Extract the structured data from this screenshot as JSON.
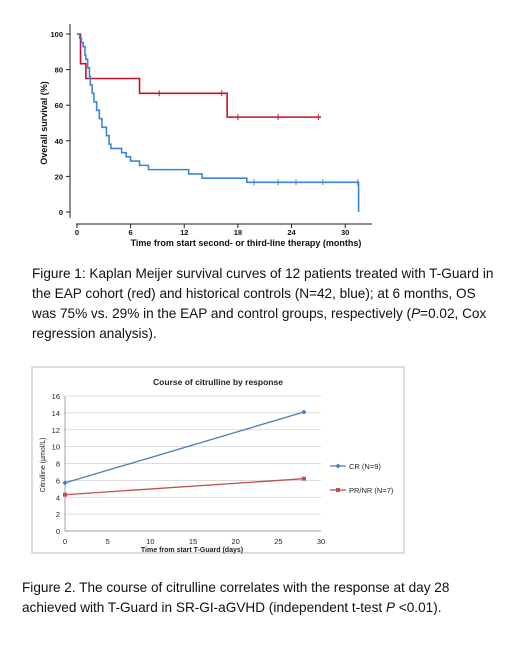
{
  "chart_data": [
    {
      "type": "line",
      "step": true,
      "title": "",
      "ylabel": "Overall survival (%)",
      "xlabel": "Time from start second- or third-line therapy (months)",
      "xlim": [
        -1,
        33
      ],
      "ylim": [
        0,
        100
      ],
      "xticks": [
        0,
        6,
        12,
        18,
        24,
        30
      ],
      "yticks": [
        0,
        20,
        40,
        60,
        80,
        100
      ],
      "grid": false,
      "series": [
        {
          "name": "EAP cohort",
          "color": "#c8102e",
          "steps": [
            [
              0,
              100
            ],
            [
              0.4,
              83.3
            ],
            [
              1.0,
              75
            ],
            [
              7.0,
              66.7
            ],
            [
              16.8,
              53.3
            ],
            [
              27.3,
              53.3
            ]
          ],
          "censored": [
            [
              9.2,
              66.7
            ],
            [
              16.2,
              66.7
            ],
            [
              18.0,
              53.3
            ],
            [
              22.5,
              53.3
            ],
            [
              27.0,
              53.3
            ]
          ]
        },
        {
          "name": "historical controls",
          "color": "#3a86d4",
          "steps": [
            [
              0,
              100
            ],
            [
              0.3,
              97.6
            ],
            [
              0.5,
              95.2
            ],
            [
              0.7,
              92.9
            ],
            [
              0.9,
              88.1
            ],
            [
              1.0,
              85.7
            ],
            [
              1.2,
              81
            ],
            [
              1.4,
              76.2
            ],
            [
              1.5,
              71.4
            ],
            [
              1.7,
              66.7
            ],
            [
              1.9,
              61.9
            ],
            [
              2.2,
              57.1
            ],
            [
              2.5,
              52.4
            ],
            [
              2.8,
              47.6
            ],
            [
              3.3,
              42.9
            ],
            [
              3.6,
              38.1
            ],
            [
              3.8,
              35.7
            ],
            [
              5.0,
              33.3
            ],
            [
              5.5,
              31
            ],
            [
              6.0,
              28.6
            ],
            [
              7.0,
              26.2
            ],
            [
              8.0,
              23.8
            ],
            [
              12.5,
              21.4
            ],
            [
              14.0,
              19
            ],
            [
              19.0,
              16.7
            ],
            [
              31.5,
              16.7
            ],
            [
              31.5,
              0
            ]
          ],
          "censored": [
            [
              19.8,
              16.7
            ],
            [
              22.5,
              16.7
            ],
            [
              24.5,
              16.7
            ],
            [
              27.5,
              16.7
            ],
            [
              31.4,
              16.7
            ]
          ]
        }
      ]
    },
    {
      "type": "line",
      "title": "Course of citrulline by response",
      "xlabel": "Time from start T-Guard (days)",
      "ylabel": "Citrulline (µmol/L)",
      "xlim": [
        0,
        30
      ],
      "ylim": [
        0,
        16
      ],
      "xticks": [
        0,
        5,
        10,
        15,
        20,
        25,
        30
      ],
      "yticks": [
        0,
        2,
        4,
        6,
        8,
        10,
        12,
        14,
        16
      ],
      "grid": true,
      "legend": "right",
      "x": [
        0,
        28
      ],
      "series": [
        {
          "name": "CR (N=9)",
          "color": "#4a7ebb",
          "marker": "diamond",
          "values": [
            5.7,
            14.1
          ]
        },
        {
          "name": "PR/NR (N=7)",
          "color": "#c0504d",
          "marker": "square",
          "values": [
            4.3,
            6.2
          ]
        }
      ]
    }
  ],
  "captions": {
    "fig1": "Figure 1: Kaplan Meijer survival curves of 12 patients treated with T-Guard in the EAP cohort (red) and historical controls (N=42, blue); at 6 months, OS was 75% vs. 29% in the EAP and control groups, respectively (",
    "fig1_p": "P",
    "fig1_tail": "=0.02, Cox regression analysis).",
    "fig2": "Figure 2. The course of citrulline correlates with the response at day 28 achieved with T-Guard in SR-GI-aGVHD (independent  t-test ",
    "fig2_p": "P",
    "fig2_tail": " <0.01)."
  }
}
